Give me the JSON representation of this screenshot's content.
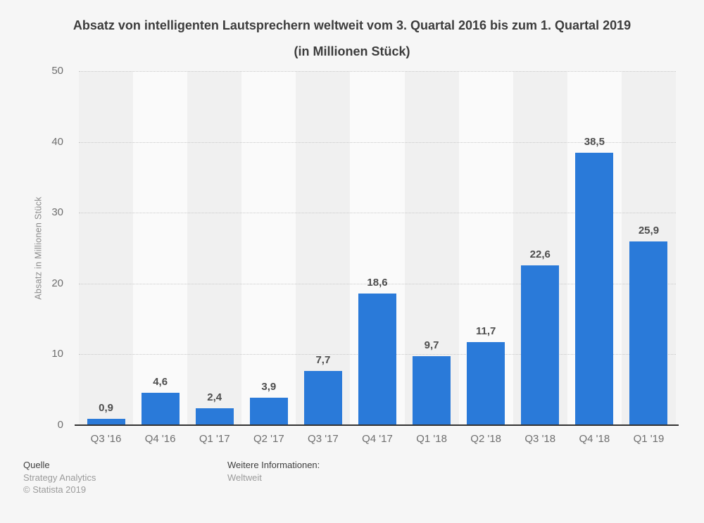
{
  "title": "Absatz von intelligenten Lautsprechern weltweit vom 3. Quartal 2016 bis zum 1. Quartal 2019 (in Millionen Stück)",
  "chart_data": {
    "type": "bar",
    "title": "Absatz von intelligenten Lautsprechern weltweit vom 3. Quartal 2016 bis zum 1. Quartal 2019 (in Millionen Stück)",
    "categories": [
      "Q3 '16",
      "Q4 '16",
      "Q1 '17",
      "Q2 '17",
      "Q3 '17",
      "Q4 '17",
      "Q1 '18",
      "Q2 '18",
      "Q3 '18",
      "Q4 '18",
      "Q1 '19"
    ],
    "values": [
      0.9,
      4.6,
      2.4,
      3.9,
      7.7,
      18.6,
      9.7,
      11.7,
      22.6,
      38.5,
      25.9
    ],
    "value_labels": [
      "0,9",
      "4,6",
      "2,4",
      "3,9",
      "7,7",
      "18,6",
      "9,7",
      "11,7",
      "22,6",
      "38,5",
      "25,9"
    ],
    "xlabel": "",
    "ylabel": "Absatz in Millionen Stück",
    "ylim": [
      0,
      50
    ],
    "yticks": [
      0,
      10,
      20,
      30,
      40,
      50
    ],
    "grid": "horizontal-dotted",
    "legend_position": "none",
    "bar_color": "#2a7ad9"
  },
  "footer": {
    "source_label": "Quelle",
    "source_name": "Strategy Analytics",
    "copyright": "© Statista 2019",
    "info_label": "Weitere Informationen:",
    "info_value": "Weltweit"
  },
  "colors": {
    "bar": "#2a7ad9",
    "background": "#f6f6f6",
    "band_dark": "#f0f0f0",
    "band_light": "#fafafa",
    "gridline": "#c9c9c9",
    "axis_line": "#333333",
    "title_text": "#3c3c3c",
    "tick_text": "#6e6e6e",
    "value_label_text": "#4d4d4d",
    "footer_muted_text": "#9b9b9b"
  }
}
